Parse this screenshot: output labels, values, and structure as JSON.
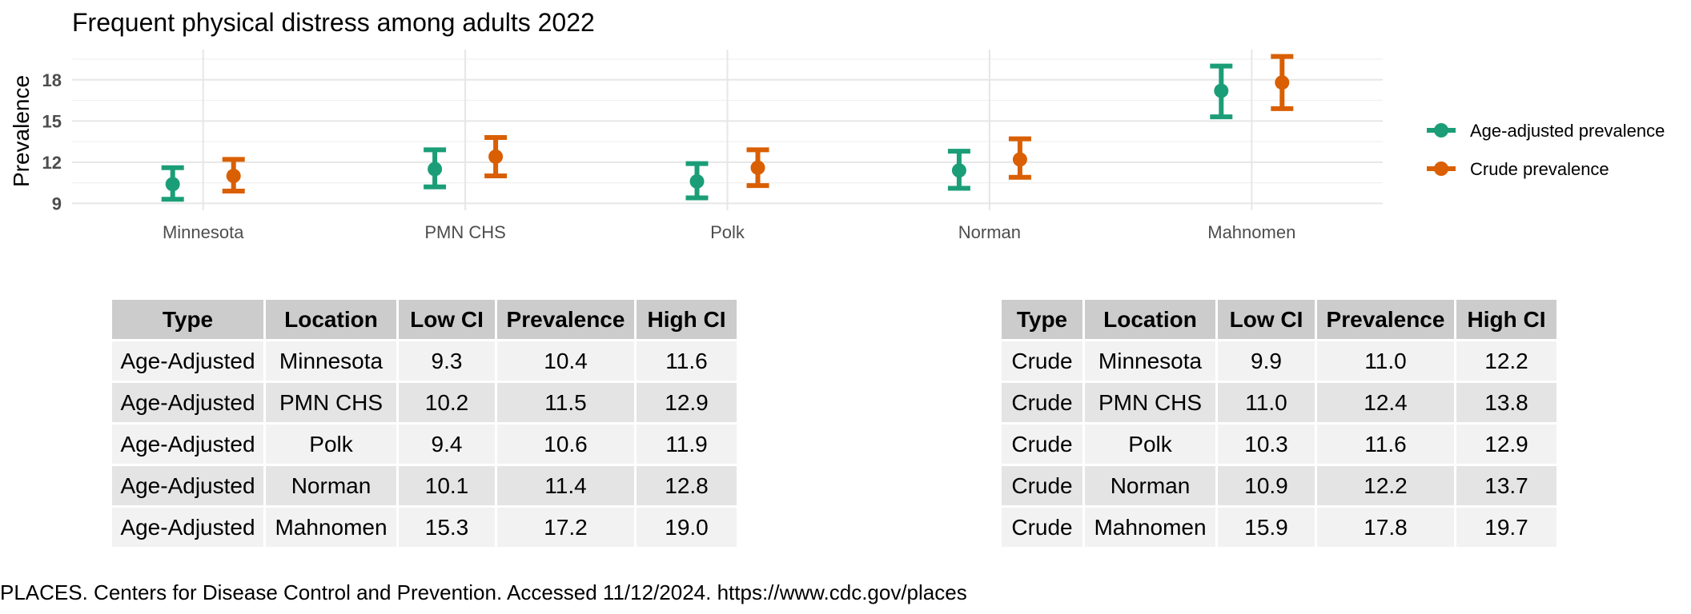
{
  "chart_data": {
    "type": "errorbar",
    "title": "Frequent physical distress among adults 2022",
    "xlabel": "",
    "ylabel": "Prevalence",
    "ylim": [
      8.5,
      20.2
    ],
    "yticks": [
      9,
      12,
      15,
      18
    ],
    "grid": true,
    "legend_position": "right",
    "categories": [
      "Minnesota",
      "PMN CHS",
      "Polk",
      "Norman",
      "Mahnomen"
    ],
    "series": [
      {
        "name": "Age-adjusted prevalence",
        "color": "#1b9e77",
        "values": [
          10.4,
          11.5,
          10.6,
          11.4,
          17.2
        ],
        "low": [
          9.3,
          10.2,
          9.4,
          10.1,
          15.3
        ],
        "high": [
          11.6,
          12.9,
          11.9,
          12.8,
          19.0
        ]
      },
      {
        "name": "Crude prevalence",
        "color": "#d95f02",
        "values": [
          11.0,
          12.4,
          11.6,
          12.2,
          17.8
        ],
        "low": [
          9.9,
          11.0,
          10.3,
          10.9,
          15.9
        ],
        "high": [
          12.2,
          13.8,
          12.9,
          13.7,
          19.7
        ]
      }
    ]
  },
  "tables": [
    {
      "headers": [
        "Type",
        "Location",
        "Low CI",
        "Prevalence",
        "High CI"
      ],
      "rows": [
        [
          "Age-Adjusted",
          "Minnesota",
          "9.3",
          "10.4",
          "11.6"
        ],
        [
          "Age-Adjusted",
          "PMN CHS",
          "10.2",
          "11.5",
          "12.9"
        ],
        [
          "Age-Adjusted",
          "Polk",
          "9.4",
          "10.6",
          "11.9"
        ],
        [
          "Age-Adjusted",
          "Norman",
          "10.1",
          "11.4",
          "12.8"
        ],
        [
          "Age-Adjusted",
          "Mahnomen",
          "15.3",
          "17.2",
          "19.0"
        ]
      ]
    },
    {
      "headers": [
        "Type",
        "Location",
        "Low CI",
        "Prevalence",
        "High CI"
      ],
      "rows": [
        [
          "Crude",
          "Minnesota",
          "9.9",
          "11.0",
          "12.2"
        ],
        [
          "Crude",
          "PMN CHS",
          "11.0",
          "12.4",
          "13.8"
        ],
        [
          "Crude",
          "Polk",
          "10.3",
          "11.6",
          "12.9"
        ],
        [
          "Crude",
          "Norman",
          "10.9",
          "12.2",
          "13.7"
        ],
        [
          "Crude",
          "Mahnomen",
          "15.9",
          "17.8",
          "19.7"
        ]
      ]
    }
  ],
  "source": "PLACES. Centers for Disease Control and Prevention. Accessed 11/12/2024. https://www.cdc.gov/places"
}
